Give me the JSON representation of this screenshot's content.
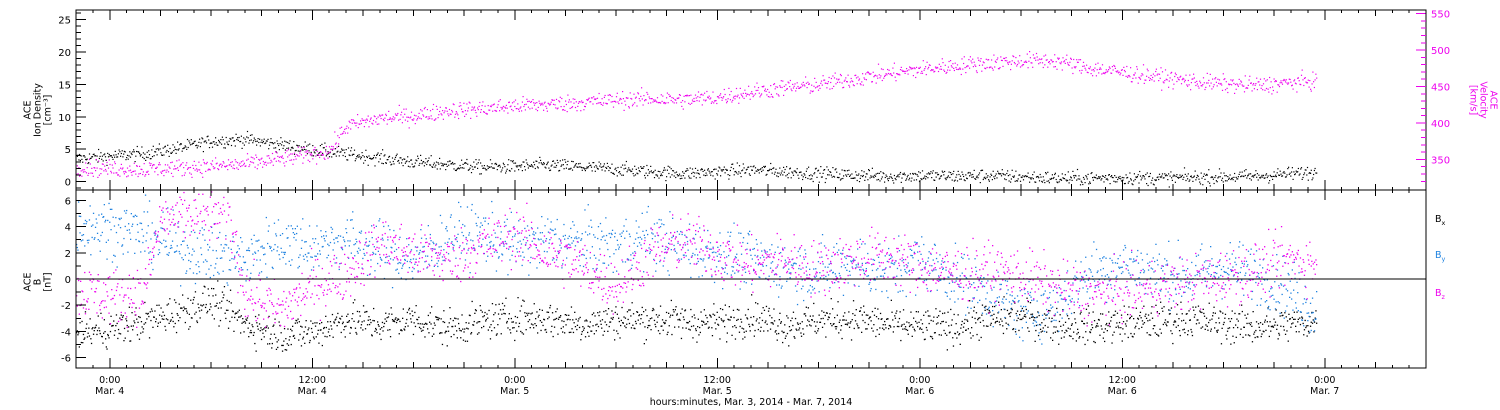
{
  "chart_data": [
    {
      "type": "scatter",
      "panel": "top",
      "ylabel_lines": [
        "ACE",
        "Ion Density",
        "[cm⁻³]"
      ],
      "y2label_lines": [
        "ACE",
        "Velocity",
        "[km/s]"
      ],
      "ylim": [
        -1.3,
        26.5
      ],
      "yticks": [
        0,
        5,
        10,
        15,
        20,
        25
      ],
      "y2lim": [
        308,
        555
      ],
      "y2ticks": [
        350,
        400,
        450,
        500,
        550
      ],
      "series": [
        {
          "color": "#000000",
          "axis": "left",
          "points": [
            [
              -2,
              3.6
            ],
            [
              0,
              4.0
            ],
            [
              2,
              4.4
            ],
            [
              4,
              5.2
            ],
            [
              6,
              6.3
            ],
            [
              8,
              6.6
            ],
            [
              10,
              5.8
            ],
            [
              12,
              5.0
            ],
            [
              14,
              4.3
            ],
            [
              16,
              3.7
            ],
            [
              18,
              3.1
            ],
            [
              20,
              2.7
            ],
            [
              22,
              2.3
            ],
            [
              24,
              2.4
            ],
            [
              26,
              2.6
            ],
            [
              28,
              2.3
            ],
            [
              30,
              2.0
            ],
            [
              32,
              1.6
            ],
            [
              34,
              1.3
            ],
            [
              36,
              1.6
            ],
            [
              38,
              1.9
            ],
            [
              40,
              1.6
            ],
            [
              42,
              1.3
            ],
            [
              44,
              1.1
            ],
            [
              46,
              0.9
            ],
            [
              48,
              1.0
            ],
            [
              50,
              0.9
            ],
            [
              52,
              1.0
            ],
            [
              54,
              0.8
            ],
            [
              56,
              0.6
            ],
            [
              58,
              0.6
            ],
            [
              60,
              0.7
            ],
            [
              62,
              0.6
            ],
            [
              64,
              0.7
            ],
            [
              66,
              0.8
            ],
            [
              68,
              0.9
            ],
            [
              70,
              1.3
            ],
            [
              71.5,
              1.5
            ]
          ],
          "spread": 1.0
        },
        {
          "color": "#ee00ee",
          "axis": "right",
          "points": [
            [
              -2,
              340
            ],
            [
              0,
              338
            ],
            [
              2,
              337
            ],
            [
              4,
              339
            ],
            [
              6,
              341
            ],
            [
              8,
              344
            ],
            [
              10,
              351
            ],
            [
              12,
              358
            ],
            [
              13,
              362
            ],
            [
              14,
              396
            ],
            [
              16,
              407
            ],
            [
              18,
              410
            ],
            [
              20,
              418
            ],
            [
              22,
              420
            ],
            [
              24,
              424
            ],
            [
              26,
              426
            ],
            [
              28,
              429
            ],
            [
              30,
              432
            ],
            [
              32,
              434
            ],
            [
              34,
              432
            ],
            [
              36,
              436
            ],
            [
              38,
              443
            ],
            [
              40,
              449
            ],
            [
              42,
              453
            ],
            [
              44,
              461
            ],
            [
              46,
              468
            ],
            [
              48,
              474
            ],
            [
              50,
              479
            ],
            [
              52,
              483
            ],
            [
              54,
              486
            ],
            [
              56,
              486
            ],
            [
              58,
              476
            ],
            [
              60,
              470
            ],
            [
              62,
              464
            ],
            [
              64,
              458
            ],
            [
              66,
              454
            ],
            [
              68,
              452
            ],
            [
              70,
              456
            ],
            [
              71.5,
              458
            ]
          ],
          "spread": 11
        }
      ]
    },
    {
      "type": "scatter",
      "panel": "bottom",
      "ylabel_lines": [
        "ACE",
        "B",
        "[nT]"
      ],
      "ylim": [
        -6.8,
        6.8
      ],
      "yticks": [
        -6,
        -4,
        -2,
        0,
        2,
        4,
        6
      ],
      "zero_line": true,
      "series": [
        {
          "name": "Bx",
          "label_main": "B",
          "label_sub": "x",
          "color": "#000000",
          "points": [
            [
              -2,
              -4.0
            ],
            [
              0,
              -3.8
            ],
            [
              2,
              -3.2
            ],
            [
              4,
              -2.5
            ],
            [
              6,
              -1.6
            ],
            [
              8,
              -3.4
            ],
            [
              10,
              -4.2
            ],
            [
              12,
              -4.0
            ],
            [
              14,
              -3.0
            ],
            [
              16,
              -3.5
            ],
            [
              18,
              -3.0
            ],
            [
              20,
              -3.7
            ],
            [
              22,
              -3.2
            ],
            [
              24,
              -2.9
            ],
            [
              26,
              -3.0
            ],
            [
              28,
              -3.4
            ],
            [
              30,
              -3.1
            ],
            [
              32,
              -3.0
            ],
            [
              34,
              -3.2
            ],
            [
              36,
              -3.3
            ],
            [
              38,
              -2.8
            ],
            [
              40,
              -3.5
            ],
            [
              42,
              -3.1
            ],
            [
              44,
              -3.0
            ],
            [
              46,
              -3.4
            ],
            [
              48,
              -3.6
            ],
            [
              50,
              -3.6
            ],
            [
              52,
              -3.0
            ],
            [
              54,
              -2.8
            ],
            [
              56,
              -3.4
            ],
            [
              58,
              -3.6
            ],
            [
              60,
              -3.4
            ],
            [
              62,
              -3.2
            ],
            [
              64,
              -3.0
            ],
            [
              66,
              -3.4
            ],
            [
              68,
              -3.6
            ],
            [
              70,
              -3.4
            ],
            [
              71.5,
              -3.2
            ]
          ],
          "spread": 1.3
        },
        {
          "name": "By",
          "label_main": "B",
          "label_sub": "y",
          "color": "#1e82e0",
          "points": [
            [
              -2,
              4.2
            ],
            [
              0,
              4.0
            ],
            [
              2,
              3.5
            ],
            [
              4,
              2.5
            ],
            [
              6,
              2.0
            ],
            [
              8,
              1.5
            ],
            [
              10,
              3.0
            ],
            [
              12,
              2.5
            ],
            [
              14,
              3.0
            ],
            [
              16,
              2.2
            ],
            [
              18,
              1.5
            ],
            [
              20,
              3.2
            ],
            [
              22,
              3.5
            ],
            [
              24,
              2.5
            ],
            [
              26,
              3.0
            ],
            [
              28,
              2.8
            ],
            [
              30,
              2.6
            ],
            [
              32,
              3.2
            ],
            [
              34,
              2.4
            ],
            [
              36,
              2.0
            ],
            [
              38,
              1.4
            ],
            [
              40,
              1.0
            ],
            [
              42,
              0.6
            ],
            [
              44,
              1.4
            ],
            [
              46,
              0.5
            ],
            [
              48,
              1.5
            ],
            [
              50,
              0.2
            ],
            [
              52,
              -1.0
            ],
            [
              54,
              -2.5
            ],
            [
              56,
              -2.0
            ],
            [
              58,
              0.5
            ],
            [
              60,
              1.2
            ],
            [
              62,
              0.6
            ],
            [
              64,
              0.2
            ],
            [
              66,
              1.0
            ],
            [
              68,
              0.4
            ],
            [
              70,
              -0.8
            ],
            [
              71.5,
              -2.5
            ]
          ],
          "spread": 2.1
        },
        {
          "name": "Bz",
          "label_main": "B",
          "label_sub": "z",
          "color": "#ee00ee",
          "points": [
            [
              -2,
              -0.8
            ],
            [
              0,
              -1.3
            ],
            [
              2,
              -1.0
            ],
            [
              3,
              4.6
            ],
            [
              5,
              4.8
            ],
            [
              7,
              5.0
            ],
            [
              8,
              -1.0
            ],
            [
              10,
              -2.5
            ],
            [
              12,
              -0.5
            ],
            [
              14,
              0.5
            ],
            [
              16,
              2.8
            ],
            [
              18,
              2.0
            ],
            [
              20,
              1.5
            ],
            [
              22,
              2.5
            ],
            [
              24,
              3.5
            ],
            [
              26,
              2.0
            ],
            [
              28,
              1.0
            ],
            [
              30,
              -0.5
            ],
            [
              32,
              2.0
            ],
            [
              34,
              3.0
            ],
            [
              36,
              2.0
            ],
            [
              38,
              1.0
            ],
            [
              40,
              1.5
            ],
            [
              42,
              0.8
            ],
            [
              44,
              1.5
            ],
            [
              46,
              1.8
            ],
            [
              48,
              1.0
            ],
            [
              50,
              0.5
            ],
            [
              52,
              0.6
            ],
            [
              54,
              0.3
            ],
            [
              56,
              -0.6
            ],
            [
              58,
              -1.2
            ],
            [
              60,
              -1.0
            ],
            [
              62,
              -0.5
            ],
            [
              64,
              -0.3
            ],
            [
              66,
              0.2
            ],
            [
              68,
              0.8
            ],
            [
              70,
              1.5
            ],
            [
              71.5,
              1.2
            ]
          ],
          "spread": 2.0
        }
      ]
    }
  ],
  "x_axis": {
    "xlim": [
      -2.0,
      78.0
    ],
    "major_ticks": [
      {
        "t": 0,
        "time": "0:00",
        "date": "Mar. 4"
      },
      {
        "t": 12,
        "time": "12:00",
        "date": "Mar. 4"
      },
      {
        "t": 24,
        "time": "0:00",
        "date": "Mar. 5"
      },
      {
        "t": 36,
        "time": "12:00",
        "date": "Mar. 5"
      },
      {
        "t": 48,
        "time": "0:00",
        "date": "Mar. 6"
      },
      {
        "t": 60,
        "time": "12:00",
        "date": "Mar. 6"
      },
      {
        "t": 72,
        "time": "0:00",
        "date": "Mar. 7"
      }
    ],
    "label": "hours:minutes, Mar. 3, 2014 - Mar. 7, 2014"
  },
  "colors": {
    "density": "#000000",
    "velocity": "#ee00ee",
    "bx": "#000000",
    "by": "#1e82e0",
    "bz": "#ee00ee"
  }
}
